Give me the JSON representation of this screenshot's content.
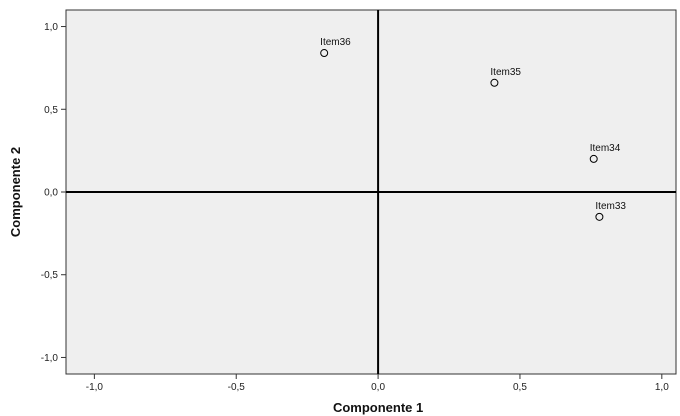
{
  "chart_data": {
    "type": "scatter",
    "title": "",
    "xlabel": "Componente 1",
    "ylabel": "Componente 2",
    "xlim": [
      -1.1,
      1.05
    ],
    "ylim": [
      -1.1,
      1.1
    ],
    "x_ticks": [
      -1.0,
      -0.5,
      0.0,
      0.5,
      1.0
    ],
    "x_tick_labels": [
      "-1,0",
      "-0,5",
      "0,0",
      "0,5",
      "1,0"
    ],
    "y_ticks": [
      1.0,
      0.5,
      0.0,
      -0.5,
      -1.0
    ],
    "y_tick_labels": [
      "1,0",
      "0,5",
      "0,0",
      "-0,5",
      "-1,0"
    ],
    "grid": false,
    "reference_lines": {
      "x": 0.0,
      "y": 0.0
    },
    "points": [
      {
        "label": "Item36",
        "x": -0.19,
        "y": 0.84
      },
      {
        "label": "Item35",
        "x": 0.41,
        "y": 0.66
      },
      {
        "label": "Item34",
        "x": 0.76,
        "y": 0.2
      },
      {
        "label": "Item33",
        "x": 0.78,
        "y": -0.15
      }
    ],
    "colors": {
      "plot_background": "#efefef",
      "axis": "#000000",
      "marker": "#000000"
    }
  }
}
